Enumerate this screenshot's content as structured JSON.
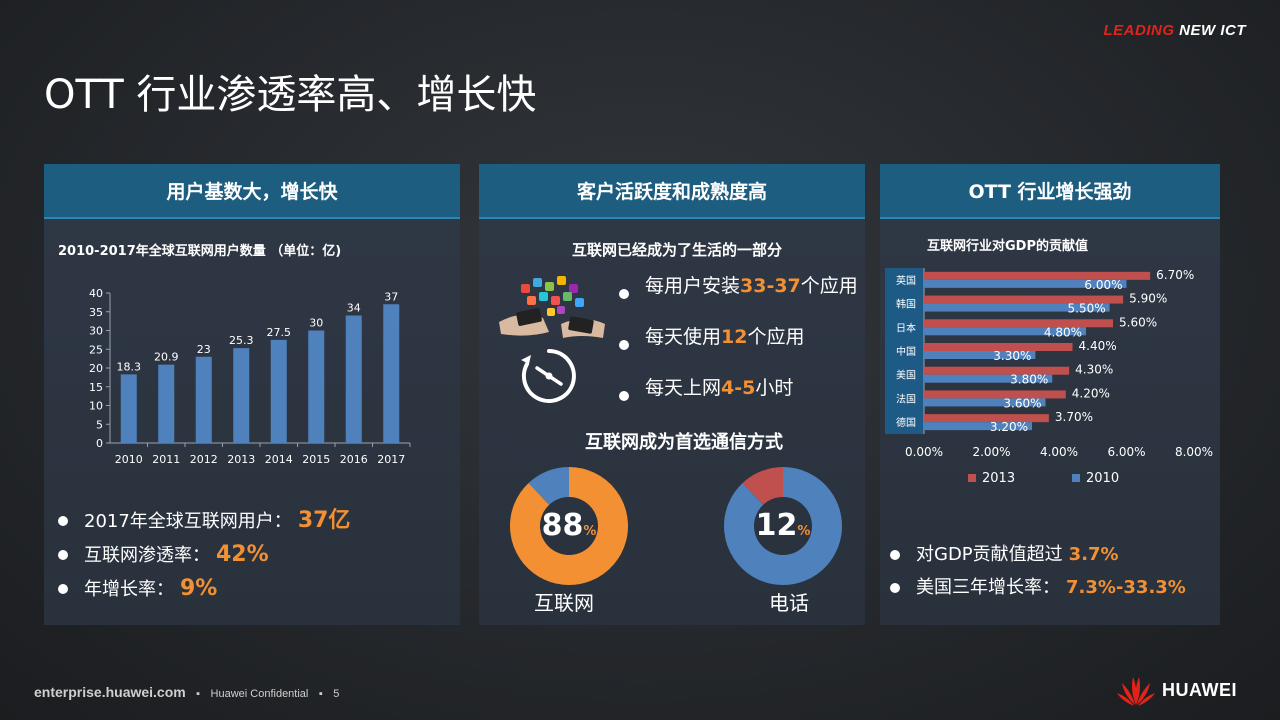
{
  "tagline": {
    "part1": "LEADING",
    "part2": "NEW ICT"
  },
  "title": "OTT 行业渗透率高、增长快",
  "panel1": {
    "header": "用户基数大，增长快",
    "bullets": [
      {
        "text": "2017年全球互联网用户：",
        "value": "37亿"
      },
      {
        "text": "互联网渗透率：",
        "value": "42%"
      },
      {
        "text": "年增长率：",
        "value": "9%"
      }
    ]
  },
  "panel2": {
    "header": "客户活跃度和成熟度高",
    "subtitle1": "互联网已经成为了生活的一部分",
    "bullets": [
      {
        "pre": "每用户安装",
        "value": "33-37",
        "post": "个应用"
      },
      {
        "pre": "每天使用",
        "value": "12",
        "post": "个应用"
      },
      {
        "pre": "每天上网",
        "value": "4-5",
        "post": "小时"
      }
    ],
    "subtitle2": "互联网成为首选通信方式",
    "donuts": [
      {
        "value": 88,
        "number": "88",
        "unit": "%",
        "label": "互联网"
      },
      {
        "value": 12,
        "number": "12",
        "unit": "%",
        "label": "电话"
      }
    ],
    "icons": [
      "smartphone-apps-icon",
      "clock-timer-icon"
    ]
  },
  "panel3": {
    "header": "OTT 行业增长强劲",
    "bullets": [
      {
        "text": "对GDP贡献值超过",
        "value": "3.7%"
      },
      {
        "text": "美国三年增长率：",
        "value": "7.3%-33.3%"
      }
    ]
  },
  "colors": {
    "accent": "#f39033",
    "bar_blue": "#4f81bd",
    "bar_red": "#c0504d",
    "header_bg": "#1c5d80",
    "brand_red": "#e2231a"
  },
  "footer": {
    "site": "enterprise.huawei.com",
    "confidential": "Huawei Confidential",
    "page": "5",
    "brand": "HUAWEI"
  },
  "chart_data": [
    {
      "type": "bar",
      "title": "2010-2017年全球互联网用户数量 （单位：亿)",
      "categories": [
        "2010",
        "2011",
        "2012",
        "2013",
        "2014",
        "2015",
        "2016",
        "2017"
      ],
      "values": [
        18.3,
        20.9,
        23,
        25.3,
        27.5,
        30,
        34,
        37
      ],
      "value_labels": [
        "18.3",
        "20.9",
        "23",
        "25.3",
        "27.5",
        "30",
        "34",
        "37"
      ],
      "ylim": [
        0,
        40
      ],
      "yticks": [
        "0",
        "5",
        "10",
        "15",
        "20",
        "25",
        "30",
        "35",
        "40"
      ],
      "color": "#4f81bd"
    },
    {
      "type": "bar",
      "orientation": "horizontal",
      "title": "互联网行业对GDP的贡献值",
      "categories": [
        "英国",
        "韩国",
        "日本",
        "中国",
        "美国",
        "法国",
        "德国"
      ],
      "series": [
        {
          "name": "2013",
          "values": [
            6.7,
            5.9,
            5.6,
            4.4,
            4.3,
            4.2,
            3.7
          ],
          "labels": [
            "6.70%",
            "5.90%",
            "5.60%",
            "4.40%",
            "4.30%",
            "4.20%",
            "3.70%"
          ],
          "color": "#c0504d"
        },
        {
          "name": "2010",
          "values": [
            6.0,
            5.5,
            4.8,
            3.3,
            3.8,
            3.6,
            3.2
          ],
          "labels": [
            "6.00%",
            "5.50%",
            "4.80%",
            "3.30%",
            "3.80%",
            "3.60%",
            "3.20%"
          ],
          "color": "#4f81bd"
        }
      ],
      "xlim": [
        0,
        8
      ],
      "xticks": [
        "0.00%",
        "2.00%",
        "4.00%",
        "6.00%",
        "8.00%"
      ],
      "legend": "bottom"
    }
  ]
}
